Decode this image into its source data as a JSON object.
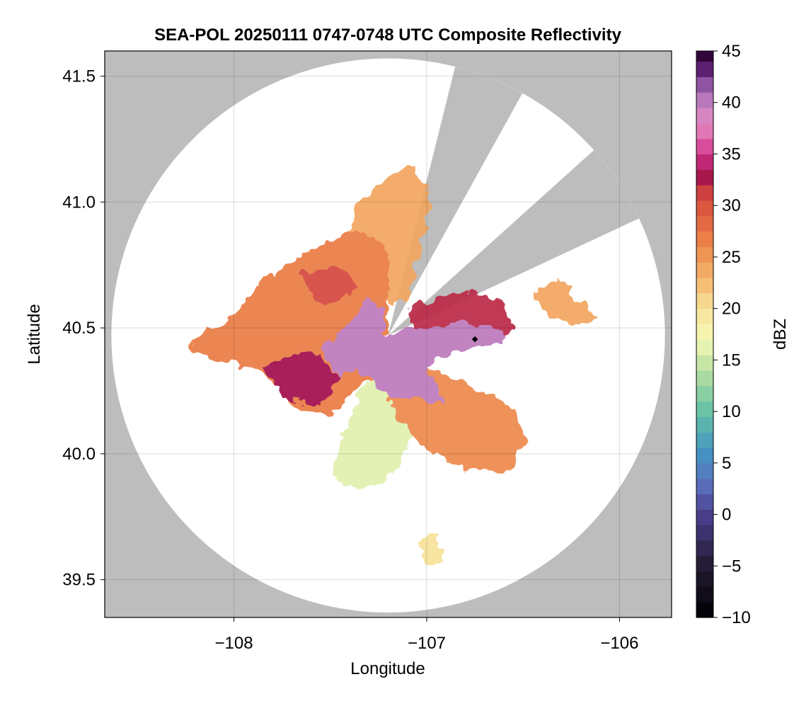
{
  "chart_data": {
    "type": "heatmap",
    "title": "SEA-POL 20250111 0747-0748 UTC Composite Reflectivity",
    "xlabel": "Longitude",
    "ylabel": "Latitude",
    "xlim": [
      -108.67,
      -105.73
    ],
    "ylim": [
      39.35,
      41.6
    ],
    "x_ticks": [
      -108,
      -107,
      -106
    ],
    "x_tick_labels": [
      "−108",
      "−107",
      "−106"
    ],
    "y_ticks": [
      39.5,
      40.0,
      40.5,
      41.0,
      41.5
    ],
    "y_tick_labels": [
      "39.5",
      "40.0",
      "40.5",
      "41.0",
      "41.5"
    ],
    "grid": true,
    "background_color": "#bdbdbd",
    "radar": {
      "center_lon": -107.2,
      "center_lat": 40.47,
      "range_lat_deg": 1.1,
      "blocked_sectors_az_deg": [
        [
          14,
          29
        ],
        [
          48,
          65
        ]
      ],
      "marker_lon": -106.75,
      "marker_lat": 40.455
    },
    "echo_regions": [
      {
        "name": "core",
        "dbz": 40,
        "points": [
          [
            -107.22,
            40.48
          ],
          [
            -107.05,
            40.5
          ],
          [
            -106.85,
            40.52
          ],
          [
            -106.62,
            40.5
          ],
          [
            -106.6,
            40.44
          ],
          [
            -106.85,
            40.41
          ],
          [
            -107.0,
            40.35
          ],
          [
            -106.9,
            40.2
          ],
          [
            -107.05,
            40.22
          ],
          [
            -107.25,
            40.25
          ],
          [
            -107.35,
            40.35
          ],
          [
            -107.45,
            40.3
          ],
          [
            -107.55,
            40.42
          ],
          [
            -107.35,
            40.56
          ],
          [
            -107.3,
            40.62
          ],
          [
            -107.22,
            40.55
          ]
        ]
      },
      {
        "name": "west-lobe",
        "dbz": 27,
        "points": [
          [
            -108.25,
            40.43
          ],
          [
            -108.0,
            40.55
          ],
          [
            -107.85,
            40.7
          ],
          [
            -107.65,
            40.78
          ],
          [
            -107.5,
            40.85
          ],
          [
            -107.35,
            40.9
          ],
          [
            -107.2,
            40.8
          ],
          [
            -107.2,
            40.5
          ],
          [
            -107.3,
            40.3
          ],
          [
            -107.5,
            40.15
          ],
          [
            -107.7,
            40.2
          ],
          [
            -107.85,
            40.32
          ],
          [
            -108.1,
            40.38
          ]
        ]
      },
      {
        "name": "north-arm",
        "dbz": 24,
        "points": [
          [
            -107.45,
            40.8
          ],
          [
            -107.35,
            41.0
          ],
          [
            -107.2,
            41.1
          ],
          [
            -107.05,
            41.15
          ],
          [
            -106.98,
            41.0
          ],
          [
            -107.1,
            40.6
          ],
          [
            -107.3,
            40.6
          ]
        ]
      },
      {
        "name": "east-band",
        "dbz": 32,
        "points": [
          [
            -107.1,
            40.58
          ],
          [
            -106.8,
            40.65
          ],
          [
            -106.6,
            40.6
          ],
          [
            -106.55,
            40.48
          ],
          [
            -106.8,
            40.45
          ],
          [
            -107.05,
            40.47
          ]
        ]
      },
      {
        "name": "southeast",
        "dbz": 26,
        "points": [
          [
            -107.15,
            40.4
          ],
          [
            -106.85,
            40.3
          ],
          [
            -106.55,
            40.18
          ],
          [
            -106.48,
            40.05
          ],
          [
            -106.6,
            39.92
          ],
          [
            -106.85,
            39.95
          ],
          [
            -107.05,
            40.05
          ],
          [
            -107.2,
            40.2
          ]
        ]
      },
      {
        "name": "south-spokes",
        "dbz": 16,
        "points": [
          [
            -107.25,
            40.4
          ],
          [
            -107.45,
            40.05
          ],
          [
            -107.5,
            39.9
          ],
          [
            -107.3,
            39.85
          ],
          [
            -107.15,
            39.95
          ],
          [
            -107.05,
            40.1
          ],
          [
            -107.2,
            40.35
          ]
        ]
      },
      {
        "name": "west-core",
        "dbz": 33,
        "points": [
          [
            -107.85,
            40.35
          ],
          [
            -107.6,
            40.42
          ],
          [
            -107.45,
            40.3
          ],
          [
            -107.55,
            40.2
          ],
          [
            -107.75,
            40.22
          ]
        ]
      },
      {
        "name": "northwest-core",
        "dbz": 31,
        "points": [
          [
            -107.65,
            40.72
          ],
          [
            -107.45,
            40.75
          ],
          [
            -107.35,
            40.66
          ],
          [
            -107.5,
            40.6
          ],
          [
            -107.62,
            40.64
          ]
        ]
      },
      {
        "name": "east-cells",
        "dbz": 24,
        "points": [
          [
            -106.45,
            40.65
          ],
          [
            -106.3,
            40.7
          ],
          [
            -106.2,
            40.6
          ],
          [
            -106.1,
            40.55
          ],
          [
            -106.25,
            40.5
          ],
          [
            -106.4,
            40.56
          ]
        ]
      },
      {
        "name": "south-cell",
        "dbz": 20,
        "points": [
          [
            -107.05,
            39.65
          ],
          [
            -106.95,
            39.68
          ],
          [
            -106.92,
            39.58
          ],
          [
            -107.0,
            39.56
          ]
        ]
      }
    ],
    "colorbar": {
      "label": "dBZ",
      "min": -10,
      "max": 45,
      "step": 1.5,
      "ticks": [
        -10,
        -5,
        0,
        5,
        10,
        15,
        20,
        25,
        30,
        35,
        40,
        45
      ],
      "tick_labels": [
        "−10",
        "−5",
        "0",
        "5",
        "10",
        "15",
        "20",
        "25",
        "30",
        "35",
        "40",
        "45"
      ],
      "colormap": "Spectral-reversed",
      "stops": [
        {
          "v": -10,
          "c": "#000004"
        },
        {
          "v": -5,
          "c": "#231a33"
        },
        {
          "v": 0,
          "c": "#4a3f8c"
        },
        {
          "v": 3,
          "c": "#5b70bd"
        },
        {
          "v": 6,
          "c": "#4493c2"
        },
        {
          "v": 10,
          "c": "#66c2a5"
        },
        {
          "v": 14,
          "c": "#b7e0a0"
        },
        {
          "v": 17,
          "c": "#f6f8b6"
        },
        {
          "v": 20,
          "c": "#f7e29a"
        },
        {
          "v": 23,
          "c": "#f4b46a"
        },
        {
          "v": 27,
          "c": "#ea7b45"
        },
        {
          "v": 31,
          "c": "#d4473e"
        },
        {
          "v": 33,
          "c": "#a1104e"
        },
        {
          "v": 35,
          "c": "#d3378d"
        },
        {
          "v": 38,
          "c": "#e58ec4"
        },
        {
          "v": 41,
          "c": "#a970b8"
        },
        {
          "v": 43,
          "c": "#64247a"
        },
        {
          "v": 45,
          "c": "#2b0033"
        }
      ]
    }
  }
}
